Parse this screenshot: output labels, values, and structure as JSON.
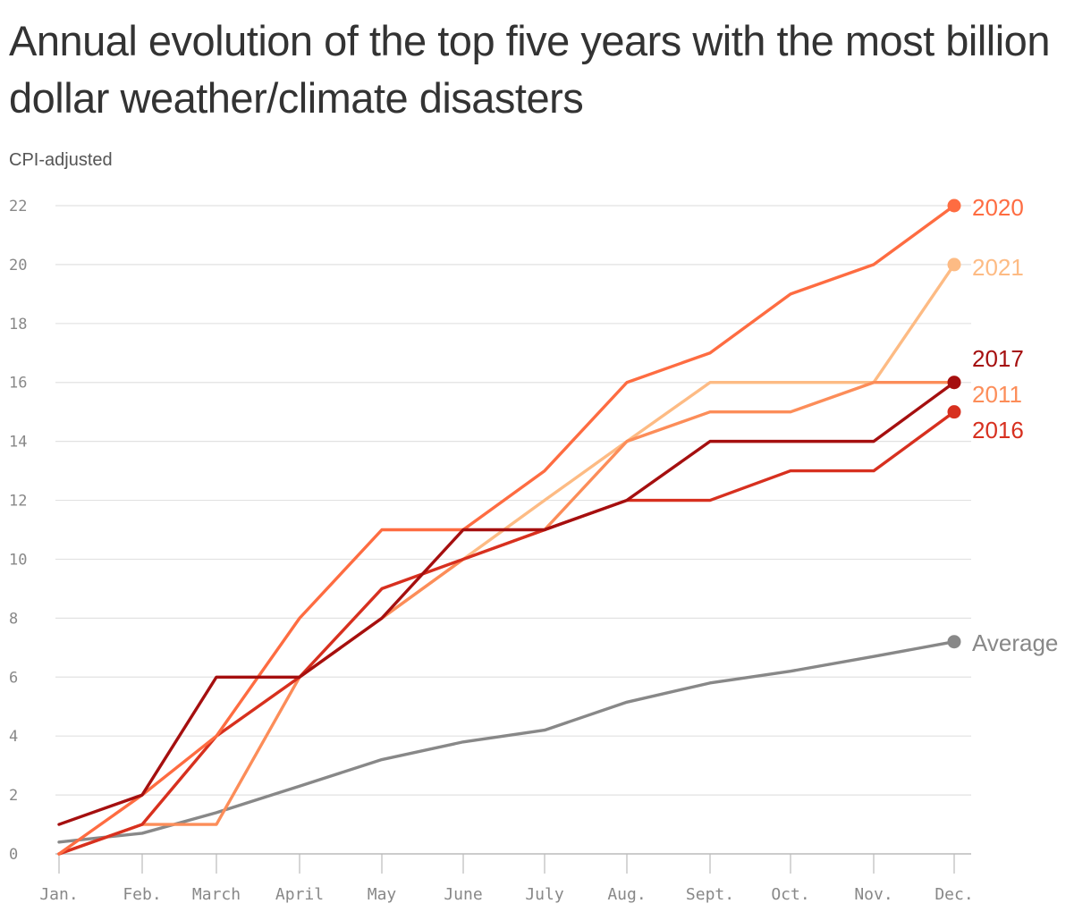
{
  "chart_data": {
    "type": "line",
    "title": "Annual evolution of the top five years with the most billion dollar weather/climate disasters",
    "subtitle": "CPI-adjusted",
    "categories": [
      "Jan.",
      "Feb.",
      "March",
      "April",
      "May",
      "June",
      "July",
      "Aug.",
      "Sept.",
      "Oct.",
      "Nov.",
      "Dec."
    ],
    "y_ticks": [
      0,
      2,
      4,
      6,
      8,
      10,
      12,
      14,
      16,
      18,
      20,
      22
    ],
    "ylim": [
      0,
      22
    ],
    "grid": true,
    "series": [
      {
        "name": "Average",
        "color": "#888888",
        "values": [
          0.4,
          0.7,
          1.4,
          2.3,
          3.2,
          3.8,
          4.2,
          5.15,
          5.8,
          6.2,
          6.7,
          7.2
        ]
      },
      {
        "name": "2021",
        "color": "#fdbb84",
        "values": [
          0,
          1,
          4,
          6,
          8,
          10,
          12,
          14,
          16,
          16,
          16,
          20
        ]
      },
      {
        "name": "2011",
        "color": "#fc8d59",
        "values": [
          0,
          1,
          1,
          6,
          8,
          10,
          11,
          14,
          15,
          15,
          16,
          16
        ]
      },
      {
        "name": "2016",
        "color": "#d7301f",
        "values": [
          0,
          1,
          4,
          6,
          9,
          10,
          11,
          12,
          12,
          13,
          13,
          15
        ]
      },
      {
        "name": "2020",
        "color": "#fe6c41",
        "values": [
          0,
          2,
          4,
          8,
          11,
          11,
          13,
          16,
          17,
          19,
          20,
          22
        ]
      },
      {
        "name": "2017",
        "color": "#a50f0f",
        "values": [
          1,
          2,
          6,
          6,
          8,
          11,
          11,
          12,
          14,
          14,
          14,
          16
        ]
      }
    ]
  }
}
